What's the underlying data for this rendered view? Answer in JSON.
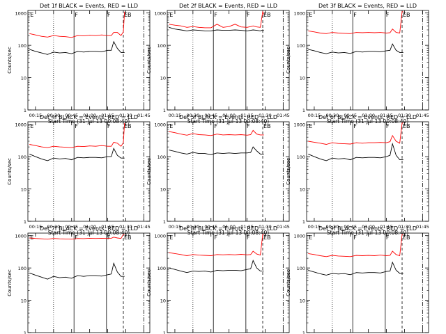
{
  "colors": {
    "background": "#ffffff",
    "axis": "#000000",
    "events": "#000000",
    "lld": "#ff0000"
  },
  "x_tick_labels": [
    "00:15",
    "00:30",
    "00:45",
    "01:00",
    "01:15",
    "01:30",
    "01:45"
  ],
  "y_tick_labels": [
    "1000",
    "100",
    "10",
    "1"
  ],
  "chart_data": [
    {
      "type": "line",
      "title": "Det 1f BLACK = Events, RED = LLD",
      "ylabel": "Counts/sec",
      "xlabel": "Start Time (31-Jul-13 00:08:40)",
      "yscale": "log",
      "ylim": [
        1,
        1200
      ],
      "xlim": [
        "00:08:40",
        "01:50"
      ],
      "x": [
        "00:10",
        "00:15",
        "00:20",
        "00:25",
        "00:30",
        "00:35",
        "00:40",
        "00:45",
        "00:50",
        "00:55",
        "01:00",
        "01:05",
        "01:10",
        "01:15",
        "01:18",
        "01:20",
        "01:23",
        "01:26",
        "01:28",
        "01:29"
      ],
      "series": [
        {
          "name": "LLD",
          "values": [
            230,
            210,
            190,
            180,
            200,
            190,
            185,
            175,
            200,
            195,
            205,
            200,
            210,
            200,
            200,
            250,
            250,
            200,
            260,
            1100
          ]
        },
        {
          "name": "Events",
          "values": [
            75,
            65,
            58,
            52,
            62,
            58,
            60,
            55,
            65,
            62,
            65,
            65,
            63,
            70,
            70,
            130,
            80,
            60,
            60,
            60
          ]
        }
      ],
      "annotations": [
        {
          "label": "E",
          "x": "00:10"
        },
        {
          "label": "F",
          "x": "00:47"
        },
        {
          "label": "F",
          "x": "01:14"
        },
        {
          "label": "EB",
          "x": "01:28"
        }
      ]
    },
    {
      "type": "line",
      "title": "Det 2f BLACK = Events, RED = LLD",
      "ylabel": "Counts/sec",
      "xlabel": "Start Time (31-Jul-13 00:08:40)",
      "yscale": "log",
      "ylim": [
        1,
        1200
      ],
      "xlim": [
        "00:08:40",
        "01:50"
      ],
      "x": [
        "00:10",
        "00:15",
        "00:20",
        "00:25",
        "00:30",
        "00:35",
        "00:40",
        "00:45",
        "00:50",
        "00:55",
        "01:00",
        "01:05",
        "01:10",
        "01:15",
        "01:18",
        "01:20",
        "01:23",
        "01:26",
        "01:28",
        "01:29"
      ],
      "series": [
        {
          "name": "LLD",
          "values": [
            450,
            420,
            400,
            360,
            380,
            360,
            350,
            350,
            450,
            360,
            380,
            450,
            370,
            360,
            380,
            400,
            370,
            360,
            1100,
            900
          ]
        },
        {
          "name": "Events",
          "values": [
            360,
            320,
            300,
            280,
            300,
            290,
            280,
            280,
            300,
            290,
            290,
            300,
            290,
            280,
            290,
            300,
            290,
            280,
            300,
            290
          ]
        }
      ],
      "annotations": [
        {
          "label": "E",
          "x": "00:10"
        },
        {
          "label": "F",
          "x": "00:47"
        },
        {
          "label": "F",
          "x": "01:14"
        },
        {
          "label": "EB",
          "x": "01:28"
        }
      ]
    },
    {
      "type": "line",
      "title": "Det 3f BLACK = Events, RED = LLD",
      "ylabel": "Counts/sec",
      "xlabel": "Start Time (31-Jul-13 00:08:40)",
      "yscale": "log",
      "ylim": [
        1,
        1200
      ],
      "xlim": [
        "00:08:40",
        "01:50"
      ],
      "x": [
        "00:10",
        "00:15",
        "00:20",
        "00:25",
        "00:30",
        "00:35",
        "00:40",
        "00:45",
        "00:50",
        "00:55",
        "01:00",
        "01:05",
        "01:10",
        "01:15",
        "01:18",
        "01:20",
        "01:23",
        "01:26",
        "01:28",
        "01:29"
      ],
      "series": [
        {
          "name": "LLD",
          "values": [
            280,
            260,
            240,
            230,
            250,
            240,
            235,
            230,
            250,
            245,
            250,
            245,
            250,
            240,
            245,
            320,
            250,
            240,
            1100,
            1100
          ]
        },
        {
          "name": "Events",
          "values": [
            75,
            68,
            60,
            55,
            62,
            58,
            60,
            56,
            65,
            62,
            65,
            65,
            63,
            68,
            70,
            110,
            70,
            60,
            60,
            60
          ]
        }
      ],
      "annotations": [
        {
          "label": "E",
          "x": "00:10"
        },
        {
          "label": "F",
          "x": "00:47"
        },
        {
          "label": "F",
          "x": "01:14"
        },
        {
          "label": "EB",
          "x": "01:28"
        }
      ]
    },
    {
      "type": "line",
      "title": "Det 4f BLACK = Events, RED = LLD",
      "ylabel": "Counts/sec",
      "xlabel": "Start Time (31-Jul-13 00:08:40)",
      "yscale": "log",
      "ylim": [
        1,
        1200
      ],
      "xlim": [
        "00:08:40",
        "01:50"
      ],
      "x": [
        "00:10",
        "00:15",
        "00:20",
        "00:25",
        "00:30",
        "00:35",
        "00:40",
        "00:45",
        "00:50",
        "00:55",
        "01:00",
        "01:05",
        "01:10",
        "01:15",
        "01:18",
        "01:20",
        "01:23",
        "01:26",
        "01:28",
        "01:29"
      ],
      "series": [
        {
          "name": "LLD",
          "values": [
            240,
            220,
            200,
            190,
            210,
            200,
            195,
            190,
            210,
            205,
            215,
            210,
            220,
            210,
            210,
            280,
            260,
            210,
            270,
            1100
          ]
        },
        {
          "name": "Events",
          "values": [
            120,
            100,
            85,
            75,
            90,
            85,
            88,
            80,
            95,
            92,
            95,
            95,
            92,
            100,
            100,
            180,
            110,
            90,
            90,
            90
          ]
        }
      ],
      "annotations": [
        {
          "label": "E",
          "x": "00:10"
        },
        {
          "label": "F",
          "x": "00:47"
        },
        {
          "label": "F",
          "x": "01:14"
        },
        {
          "label": "EB",
          "x": "01:28"
        }
      ]
    },
    {
      "type": "line",
      "title": "Det 5f BLACK = Events, RED = LLD",
      "ylabel": "Counts/sec",
      "xlabel": "Start Time (31-Jul-13 00:08:40)",
      "yscale": "log",
      "ylim": [
        1,
        1200
      ],
      "xlim": [
        "00:08:40",
        "01:50"
      ],
      "x": [
        "00:10",
        "00:15",
        "00:20",
        "00:25",
        "00:30",
        "00:35",
        "00:40",
        "00:45",
        "00:50",
        "00:55",
        "01:00",
        "01:05",
        "01:10",
        "01:15",
        "01:18",
        "01:20",
        "01:23",
        "01:26",
        "01:28",
        "01:29"
      ],
      "series": [
        {
          "name": "LLD",
          "values": [
            600,
            550,
            500,
            460,
            520,
            480,
            470,
            450,
            500,
            470,
            480,
            470,
            480,
            460,
            480,
            650,
            500,
            470,
            470,
            470
          ]
        },
        {
          "name": "Events",
          "values": [
            160,
            145,
            130,
            120,
            135,
            125,
            125,
            115,
            130,
            125,
            130,
            125,
            130,
            130,
            135,
            200,
            150,
            120,
            120,
            120
          ]
        }
      ],
      "annotations": [
        {
          "label": "E",
          "x": "00:10"
        },
        {
          "label": "F",
          "x": "00:47"
        },
        {
          "label": "F",
          "x": "01:14"
        },
        {
          "label": "EB",
          "x": "01:28"
        }
      ]
    },
    {
      "type": "line",
      "title": "Det 6f BLACK = Events, RED = LLD",
      "ylabel": "Counts/sec",
      "xlabel": "Start Time (31-Jul-13 00:08:40)",
      "yscale": "log",
      "ylim": [
        1,
        1200
      ],
      "xlim": [
        "00:08:40",
        "01:50"
      ],
      "x": [
        "00:10",
        "00:15",
        "00:20",
        "00:25",
        "00:30",
        "00:35",
        "00:40",
        "00:45",
        "00:50",
        "00:55",
        "01:00",
        "01:05",
        "01:10",
        "01:15",
        "01:18",
        "01:20",
        "01:23",
        "01:26",
        "01:28",
        "01:29"
      ],
      "series": [
        {
          "name": "LLD",
          "values": [
            300,
            280,
            260,
            240,
            270,
            255,
            250,
            245,
            270,
            260,
            270,
            270,
            275,
            270,
            290,
            450,
            300,
            260,
            1100,
            1100
          ]
        },
        {
          "name": "Events",
          "values": [
            120,
            100,
            85,
            75,
            90,
            85,
            88,
            80,
            95,
            92,
            95,
            95,
            92,
            100,
            110,
            250,
            110,
            80,
            80,
            80
          ]
        }
      ],
      "annotations": [
        {
          "label": "E",
          "x": "00:10"
        },
        {
          "label": "F",
          "x": "00:47"
        },
        {
          "label": "F",
          "x": "01:14"
        },
        {
          "label": "EB",
          "x": "01:28"
        }
      ]
    },
    {
      "type": "line",
      "title": "Det 7f BLACK = Events, RED = LLD",
      "ylabel": "Counts/sec",
      "xlabel": "Start Time (31-Jul-13 00:08:40)",
      "yscale": "log",
      "ylim": [
        1,
        1200
      ],
      "xlim": [
        "00:08:40",
        "01:50"
      ],
      "x": [
        "00:10",
        "00:15",
        "00:20",
        "00:25",
        "00:30",
        "00:35",
        "00:40",
        "00:45",
        "00:50",
        "00:55",
        "01:00",
        "01:05",
        "01:10",
        "01:15",
        "01:18",
        "01:20",
        "01:23",
        "01:26",
        "01:28",
        "01:29"
      ],
      "series": [
        {
          "name": "LLD",
          "values": [
            850,
            820,
            800,
            780,
            820,
            800,
            790,
            780,
            820,
            810,
            830,
            820,
            830,
            820,
            830,
            900,
            850,
            820,
            1100,
            1100
          ]
        },
        {
          "name": "Events",
          "values": [
            70,
            60,
            52,
            45,
            55,
            50,
            52,
            48,
            58,
            55,
            58,
            58,
            56,
            62,
            65,
            140,
            75,
            55,
            55,
            55
          ]
        }
      ],
      "annotations": [
        {
          "label": "E",
          "x": "00:10"
        },
        {
          "label": "F",
          "x": "00:47"
        },
        {
          "label": "F",
          "x": "01:14"
        },
        {
          "label": "EB",
          "x": "01:28"
        }
      ]
    },
    {
      "type": "line",
      "title": "Det 8f BLACK = Events, RED = LLD",
      "ylabel": "Counts/sec",
      "xlabel": "Start Time (31-Jul-13 00:08:40)",
      "yscale": "log",
      "ylim": [
        1,
        1200
      ],
      "xlim": [
        "00:08:40",
        "01:50"
      ],
      "x": [
        "00:10",
        "00:15",
        "00:20",
        "00:25",
        "00:30",
        "00:35",
        "00:40",
        "00:45",
        "00:50",
        "00:55",
        "01:00",
        "01:05",
        "01:10",
        "01:15",
        "01:18",
        "01:20",
        "01:23",
        "01:26",
        "01:28",
        "01:29"
      ],
      "series": [
        {
          "name": "LLD",
          "values": [
            300,
            280,
            260,
            240,
            260,
            250,
            245,
            240,
            260,
            255,
            260,
            255,
            265,
            255,
            260,
            330,
            270,
            250,
            1100,
            1100
          ]
        },
        {
          "name": "Events",
          "values": [
            100,
            90,
            80,
            72,
            80,
            78,
            80,
            75,
            85,
            82,
            85,
            85,
            82,
            90,
            95,
            170,
            100,
            80,
            80,
            80
          ]
        }
      ],
      "annotations": [
        {
          "label": "E",
          "x": "00:10"
        },
        {
          "label": "F",
          "x": "00:47"
        },
        {
          "label": "F",
          "x": "01:14"
        },
        {
          "label": "EB",
          "x": "01:28"
        }
      ]
    },
    {
      "type": "line",
      "title": "Det 9f BLACK = Events, RED = LLD",
      "ylabel": "Counts/sec",
      "xlabel": "Start Time (31-Jul-13 00:08:40)",
      "yscale": "log",
      "ylim": [
        1,
        1200
      ],
      "xlim": [
        "00:08:40",
        "01:50"
      ],
      "x": [
        "00:10",
        "00:15",
        "00:20",
        "00:25",
        "00:30",
        "00:35",
        "00:40",
        "00:45",
        "00:50",
        "00:55",
        "01:00",
        "01:05",
        "01:10",
        "01:15",
        "01:18",
        "01:20",
        "01:23",
        "01:26",
        "01:28",
        "01:29"
      ],
      "series": [
        {
          "name": "LLD",
          "values": [
            280,
            260,
            240,
            225,
            245,
            235,
            230,
            225,
            245,
            240,
            245,
            240,
            250,
            240,
            245,
            330,
            260,
            240,
            1100,
            1100
          ]
        },
        {
          "name": "Events",
          "values": [
            85,
            75,
            66,
            60,
            68,
            65,
            67,
            62,
            72,
            70,
            72,
            72,
            70,
            78,
            80,
            150,
            85,
            68,
            68,
            68
          ]
        }
      ],
      "annotations": [
        {
          "label": "E",
          "x": "00:10"
        },
        {
          "label": "F",
          "x": "00:47"
        },
        {
          "label": "F",
          "x": "01:14"
        },
        {
          "label": "EB",
          "x": "01:28"
        }
      ]
    }
  ]
}
